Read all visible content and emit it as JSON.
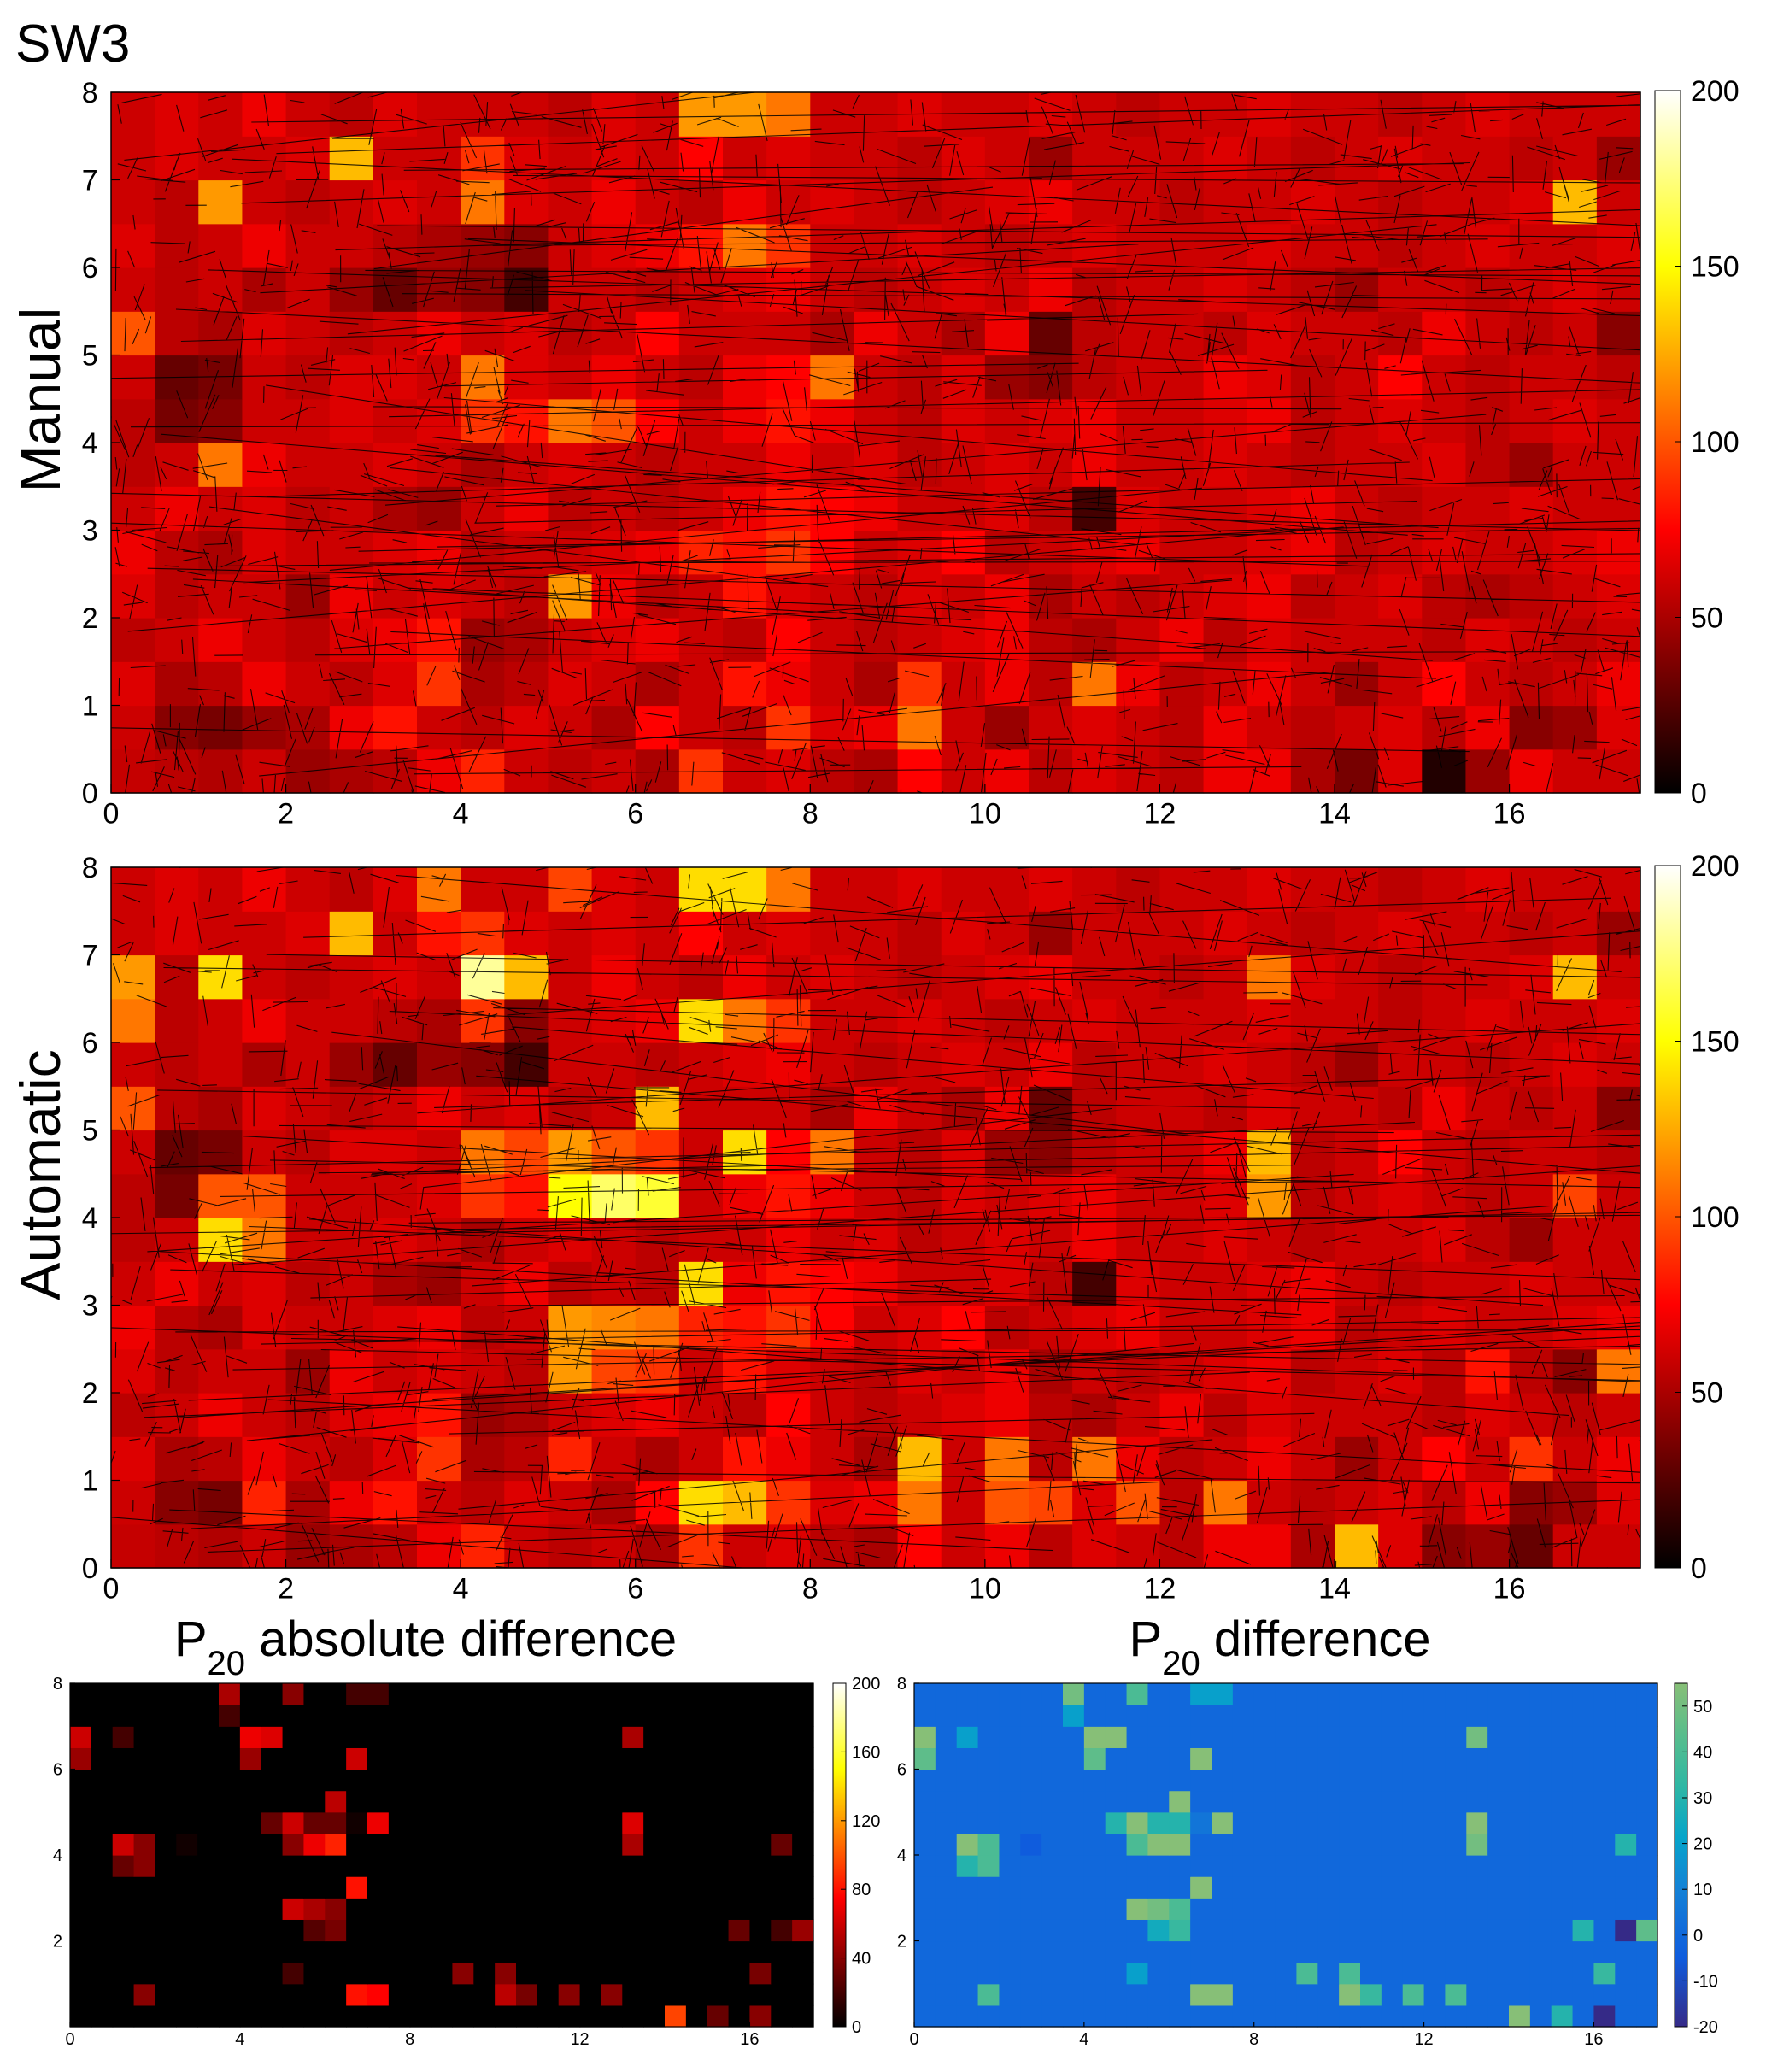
{
  "figure": {
    "title": "SW3"
  },
  "chart_data": [
    {
      "type": "heatmap",
      "panel": "manual",
      "ylabel": "Manual",
      "title": "",
      "xlim": [
        0,
        17.5
      ],
      "ylim": [
        0,
        8
      ],
      "xticks": [
        "0",
        "2",
        "4",
        "6",
        "8",
        "10",
        "12",
        "14",
        "16"
      ],
      "yticks": [
        "0",
        "1",
        "2",
        "3",
        "4",
        "5",
        "6",
        "7",
        "8"
      ],
      "grid_size": [
        35,
        16
      ],
      "colormap": "hot",
      "clim": [
        0,
        200
      ],
      "colorbar_ticks": [
        "0",
        "50",
        "100",
        "150",
        "200"
      ],
      "overlay": "fracture network traces",
      "values": [
        [
          58,
          55,
          52,
          60,
          45,
          50,
          55,
          70,
          85,
          60,
          55,
          60,
          50,
          90,
          60,
          65,
          55,
          50,
          75,
          60,
          70,
          55,
          65,
          60,
          55,
          70,
          70,
          50,
          35,
          65,
          10,
          45,
          70,
          60,
          60
        ],
        [
          60,
          40,
          35,
          45,
          50,
          70,
          80,
          60,
          55,
          65,
          60,
          50,
          75,
          60,
          55,
          90,
          65,
          70,
          110,
          60,
          45,
          60,
          65,
          60,
          55,
          70,
          60,
          55,
          60,
          65,
          55,
          70,
          40,
          45,
          65
        ],
        [
          65,
          50,
          55,
          70,
          60,
          55,
          65,
          90,
          50,
          55,
          65,
          60,
          50,
          60,
          80,
          70,
          60,
          50,
          90,
          60,
          70,
          55,
          110,
          70,
          55,
          60,
          70,
          60,
          45,
          60,
          75,
          60,
          55,
          60,
          70
        ],
        [
          55,
          60,
          70,
          60,
          55,
          65,
          70,
          80,
          45,
          50,
          60,
          65,
          70,
          60,
          55,
          75,
          60,
          55,
          60,
          65,
          70,
          55,
          50,
          60,
          70,
          55,
          65,
          60,
          60,
          60,
          55,
          65,
          60,
          55,
          60
        ],
        [
          65,
          55,
          60,
          60,
          45,
          70,
          60,
          65,
          60,
          55,
          120,
          70,
          55,
          60,
          80,
          65,
          60,
          55,
          65,
          60,
          70,
          50,
          60,
          55,
          60,
          65,
          70,
          55,
          60,
          65,
          55,
          50,
          55,
          60,
          65
        ],
        [
          70,
          55,
          50,
          65,
          60,
          60,
          65,
          70,
          55,
          60,
          60,
          65,
          70,
          85,
          80,
          90,
          75,
          60,
          65,
          75,
          55,
          60,
          65,
          70,
          60,
          60,
          65,
          70,
          55,
          60,
          65,
          60,
          60,
          65,
          70
        ],
        [
          60,
          70,
          60,
          65,
          55,
          60,
          50,
          45,
          60,
          70,
          55,
          60,
          55,
          60,
          70,
          80,
          75,
          70,
          60,
          60,
          65,
          55,
          20,
          65,
          60,
          60,
          65,
          70,
          60,
          55,
          60,
          60,
          65,
          60,
          60
        ],
        [
          55,
          60,
          110,
          70,
          60,
          60,
          65,
          60,
          50,
          60,
          65,
          60,
          55,
          60,
          60,
          70,
          60,
          65,
          55,
          60,
          65,
          60,
          70,
          60,
          60,
          65,
          60,
          55,
          60,
          60,
          65,
          55,
          45,
          60,
          60
        ],
        [
          55,
          35,
          40,
          60,
          60,
          65,
          60,
          65,
          90,
          80,
          110,
          100,
          75,
          60,
          70,
          80,
          70,
          60,
          55,
          65,
          60,
          65,
          70,
          60,
          60,
          65,
          70,
          55,
          60,
          65,
          60,
          55,
          60,
          65,
          60
        ],
        [
          60,
          30,
          35,
          60,
          55,
          65,
          65,
          60,
          110,
          65,
          60,
          70,
          60,
          55,
          70,
          75,
          110,
          60,
          55,
          65,
          45,
          40,
          55,
          60,
          60,
          70,
          65,
          55,
          60,
          75,
          60,
          55,
          60,
          60,
          55
        ],
        [
          100,
          55,
          50,
          65,
          60,
          55,
          60,
          70,
          60,
          65,
          55,
          60,
          75,
          60,
          60,
          60,
          50,
          70,
          60,
          50,
          70,
          30,
          55,
          60,
          60,
          55,
          65,
          60,
          60,
          55,
          70,
          60,
          55,
          60,
          40
        ],
        [
          60,
          55,
          60,
          50,
          60,
          45,
          30,
          45,
          40,
          20,
          60,
          60,
          55,
          60,
          65,
          70,
          60,
          55,
          60,
          65,
          60,
          70,
          55,
          60,
          60,
          65,
          60,
          55,
          45,
          60,
          60,
          55,
          60,
          65,
          60
        ],
        [
          65,
          55,
          60,
          70,
          60,
          60,
          55,
          50,
          45,
          40,
          60,
          65,
          70,
          80,
          110,
          90,
          60,
          60,
          65,
          60,
          55,
          60,
          65,
          60,
          60,
          60,
          65,
          60,
          60,
          55,
          60,
          65,
          60,
          60,
          65
        ],
        [
          60,
          55,
          120,
          60,
          55,
          60,
          65,
          60,
          110,
          65,
          60,
          70,
          60,
          55,
          70,
          60,
          65,
          60,
          55,
          60,
          65,
          70,
          60,
          60,
          55,
          60,
          60,
          65,
          60,
          55,
          60,
          60,
          65,
          130,
          60
        ],
        [
          60,
          65,
          60,
          60,
          65,
          130,
          60,
          60,
          90,
          65,
          60,
          65,
          60,
          75,
          60,
          65,
          60,
          60,
          55,
          65,
          60,
          45,
          60,
          60,
          60,
          65,
          60,
          55,
          60,
          65,
          60,
          60,
          55,
          60,
          45
        ],
        [
          60,
          65,
          60,
          70,
          60,
          55,
          65,
          60,
          60,
          60,
          55,
          65,
          60,
          120,
          120,
          110,
          60,
          60,
          65,
          60,
          60,
          65,
          60,
          55,
          60,
          60,
          65,
          60,
          60,
          55,
          60,
          65,
          60,
          60,
          60
        ]
      ]
    },
    {
      "type": "heatmap",
      "panel": "automatic",
      "ylabel": "Automatic",
      "title": "",
      "xlim": [
        0,
        17.5
      ],
      "ylim": [
        0,
        8
      ],
      "xticks": [
        "0",
        "2",
        "4",
        "6",
        "8",
        "10",
        "12",
        "14",
        "16"
      ],
      "yticks": [
        "0",
        "1",
        "2",
        "3",
        "4",
        "5",
        "6",
        "7",
        "8"
      ],
      "grid_size": [
        35,
        16
      ],
      "colormap": "hot",
      "clim": [
        0,
        200
      ],
      "colorbar_ticks": [
        "0",
        "50",
        "100",
        "150",
        "200"
      ],
      "overlay": "fracture network traces",
      "values": [
        [
          58,
          55,
          52,
          60,
          45,
          50,
          55,
          70,
          85,
          60,
          55,
          60,
          50,
          90,
          60,
          65,
          55,
          50,
          75,
          60,
          70,
          55,
          65,
          60,
          55,
          70,
          70,
          50,
          130,
          65,
          40,
          45,
          30,
          60,
          60
        ],
        [
          60,
          40,
          35,
          85,
          50,
          70,
          80,
          60,
          55,
          65,
          60,
          50,
          75,
          140,
          130,
          90,
          65,
          70,
          110,
          60,
          100,
          95,
          65,
          100,
          55,
          110,
          60,
          55,
          60,
          65,
          55,
          70,
          40,
          45,
          65
        ],
        [
          65,
          50,
          55,
          70,
          60,
          55,
          65,
          90,
          50,
          55,
          85,
          60,
          50,
          60,
          80,
          70,
          60,
          50,
          130,
          60,
          110,
          55,
          110,
          70,
          55,
          60,
          70,
          60,
          45,
          60,
          75,
          60,
          90,
          60,
          70
        ],
        [
          55,
          60,
          70,
          60,
          55,
          65,
          70,
          80,
          45,
          50,
          60,
          65,
          70,
          60,
          55,
          75,
          60,
          55,
          60,
          65,
          70,
          55,
          50,
          60,
          70,
          55,
          65,
          60,
          60,
          60,
          55,
          65,
          60,
          55,
          60
        ],
        [
          65,
          55,
          60,
          60,
          45,
          70,
          60,
          65,
          60,
          55,
          120,
          95,
          90,
          60,
          80,
          65,
          60,
          55,
          65,
          60,
          70,
          50,
          60,
          55,
          60,
          65,
          70,
          55,
          60,
          65,
          55,
          80,
          55,
          40,
          110
        ],
        [
          70,
          55,
          50,
          65,
          60,
          60,
          65,
          70,
          55,
          60,
          120,
          115,
          110,
          85,
          80,
          90,
          75,
          60,
          65,
          75,
          55,
          60,
          65,
          70,
          60,
          60,
          65,
          70,
          55,
          60,
          65,
          60,
          60,
          65,
          70
        ],
        [
          60,
          70,
          60,
          65,
          55,
          60,
          50,
          45,
          60,
          70,
          55,
          60,
          55,
          140,
          70,
          80,
          75,
          70,
          60,
          60,
          65,
          55,
          20,
          65,
          60,
          60,
          65,
          70,
          60,
          55,
          60,
          60,
          65,
          60,
          60
        ],
        [
          55,
          60,
          140,
          110,
          60,
          60,
          65,
          60,
          50,
          60,
          65,
          60,
          55,
          60,
          60,
          70,
          60,
          65,
          55,
          60,
          65,
          60,
          70,
          60,
          60,
          65,
          60,
          55,
          60,
          60,
          65,
          55,
          45,
          60,
          60
        ],
        [
          55,
          35,
          100,
          100,
          60,
          60,
          60,
          65,
          90,
          80,
          150,
          170,
          160,
          60,
          70,
          80,
          70,
          60,
          55,
          65,
          60,
          65,
          70,
          60,
          60,
          65,
          120,
          55,
          60,
          65,
          60,
          55,
          60,
          95,
          60
        ],
        [
          60,
          30,
          35,
          60,
          55,
          65,
          65,
          60,
          110,
          95,
          120,
          100,
          90,
          60,
          140,
          75,
          110,
          60,
          55,
          65,
          45,
          40,
          55,
          60,
          60,
          70,
          130,
          55,
          60,
          75,
          60,
          55,
          60,
          60,
          55
        ],
        [
          100,
          55,
          50,
          65,
          60,
          55,
          60,
          70,
          60,
          65,
          55,
          60,
          130,
          60,
          60,
          60,
          50,
          70,
          60,
          50,
          70,
          30,
          55,
          60,
          60,
          55,
          65,
          60,
          60,
          55,
          70,
          60,
          55,
          60,
          40
        ],
        [
          60,
          55,
          60,
          50,
          60,
          45,
          30,
          45,
          40,
          20,
          60,
          60,
          55,
          60,
          65,
          70,
          60,
          55,
          60,
          65,
          60,
          70,
          55,
          60,
          60,
          65,
          60,
          55,
          45,
          60,
          60,
          55,
          60,
          65,
          60
        ],
        [
          110,
          55,
          60,
          70,
          60,
          60,
          55,
          50,
          90,
          40,
          60,
          65,
          70,
          140,
          110,
          90,
          60,
          60,
          65,
          60,
          55,
          60,
          65,
          60,
          60,
          60,
          65,
          60,
          60,
          55,
          60,
          65,
          60,
          60,
          65
        ],
        [
          120,
          55,
          140,
          60,
          55,
          60,
          65,
          60,
          180,
          130,
          60,
          70,
          60,
          55,
          70,
          60,
          65,
          60,
          55,
          60,
          65,
          70,
          60,
          60,
          55,
          60,
          110,
          65,
          60,
          55,
          60,
          60,
          65,
          130,
          60
        ],
        [
          60,
          65,
          60,
          60,
          65,
          130,
          60,
          80,
          90,
          65,
          60,
          65,
          60,
          75,
          60,
          65,
          60,
          60,
          55,
          65,
          60,
          45,
          60,
          60,
          60,
          65,
          60,
          55,
          60,
          65,
          60,
          60,
          55,
          60,
          45
        ],
        [
          60,
          65,
          60,
          70,
          60,
          55,
          65,
          110,
          60,
          60,
          95,
          65,
          60,
          140,
          140,
          110,
          60,
          60,
          65,
          60,
          60,
          65,
          60,
          55,
          60,
          60,
          65,
          60,
          60,
          55,
          60,
          65,
          60,
          60,
          60
        ]
      ]
    },
    {
      "type": "heatmap",
      "panel": "abs-diff",
      "title": "P20 absolute difference",
      "title_main": "P",
      "title_sub": "20",
      "title_rest": " absolute difference",
      "xlim": [
        0,
        17.5
      ],
      "ylim": [
        0,
        8
      ],
      "xticks": [
        "0",
        "4",
        "8",
        "12",
        "16"
      ],
      "yticks": [
        "2",
        "4",
        "6",
        "8"
      ],
      "grid_size": [
        35,
        16
      ],
      "colormap": "hot",
      "clim": [
        0,
        200
      ],
      "colorbar_ticks": [
        "0",
        "40",
        "80",
        "120",
        "160",
        "200"
      ]
    },
    {
      "type": "heatmap",
      "panel": "diff",
      "title": "P20 difference",
      "title_main": "P",
      "title_sub": "20",
      "title_rest": " difference",
      "xlim": [
        0,
        17.5
      ],
      "ylim": [
        0,
        8
      ],
      "xticks": [
        "0",
        "4",
        "8",
        "12",
        "16"
      ],
      "yticks": [
        "2",
        "4",
        "6",
        "8"
      ],
      "grid_size": [
        35,
        16
      ],
      "colormap": "parula",
      "clim": [
        -20,
        55
      ],
      "colorbar_ticks": [
        "-20",
        "-10",
        "0",
        "10",
        "20",
        "30",
        "40",
        "50"
      ]
    }
  ]
}
